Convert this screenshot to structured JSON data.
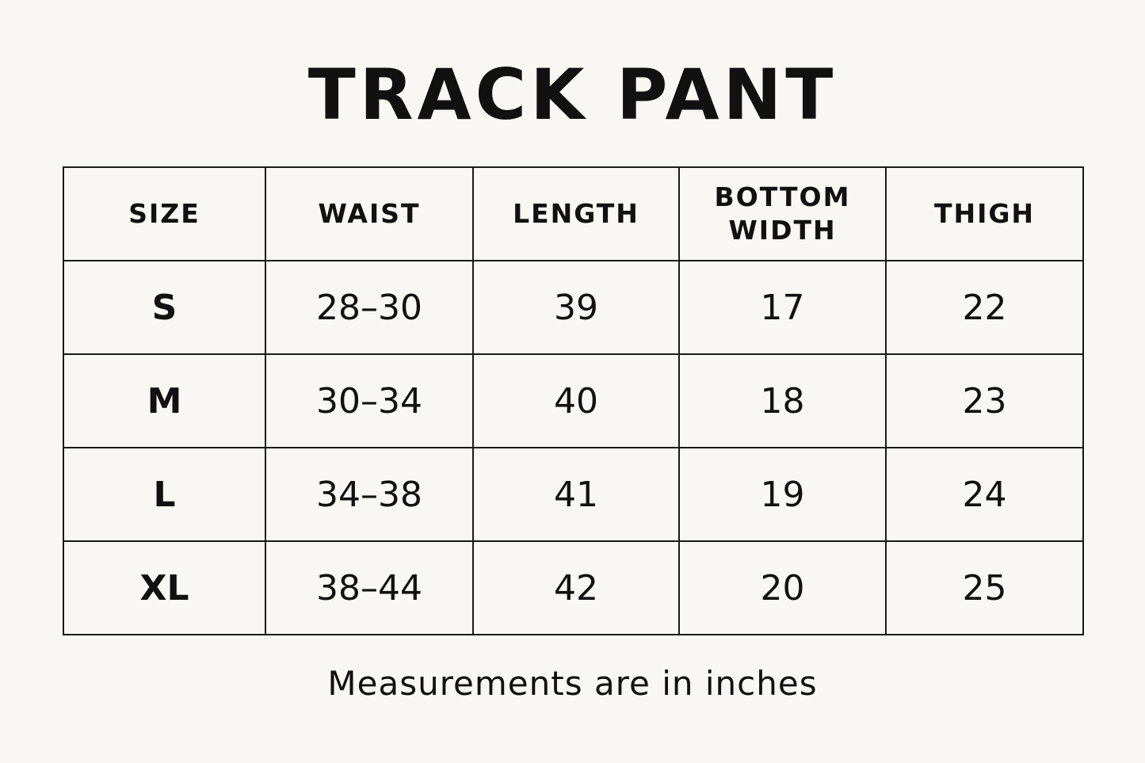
{
  "title": "TRACK PANT",
  "table": {
    "headers": [
      "SIZE",
      "WAIST",
      "LENGTH",
      "BOTTOM WIDTH",
      "THIGH"
    ],
    "rows": [
      [
        "S",
        "28–30",
        "39",
        "17",
        "22"
      ],
      [
        "M",
        "30–34",
        "40",
        "18",
        "23"
      ],
      [
        "L",
        "34–38",
        "41",
        "19",
        "24"
      ],
      [
        "XL",
        "38–44",
        "42",
        "20",
        "25"
      ]
    ]
  },
  "note": "Measurements are in inches"
}
